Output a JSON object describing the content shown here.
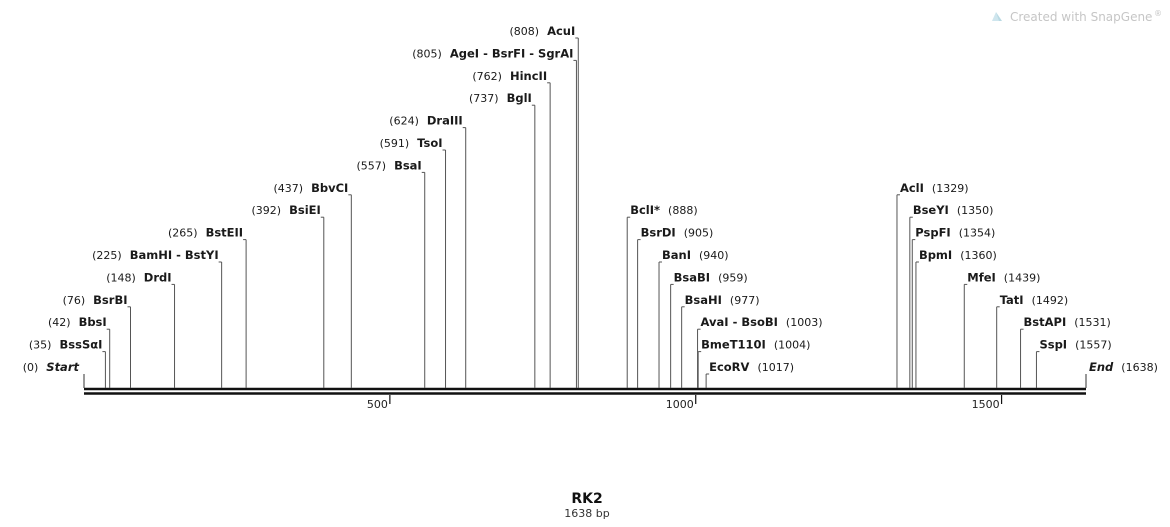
{
  "watermark": {
    "text": "Created with SnapGene",
    "mark": "®"
  },
  "sequence": {
    "name": "RK2",
    "length_label": "1638 bp",
    "length": 1638
  },
  "axis": {
    "ticks": [
      500,
      1000,
      1500
    ]
  },
  "ends": [
    {
      "name": "Start",
      "pos": 0,
      "side": "left"
    },
    {
      "name": "End",
      "pos": 1638,
      "side": "right"
    }
  ],
  "sites": [
    {
      "name": "BssSαI",
      "pos": 35,
      "side": "left",
      "level": 1
    },
    {
      "name": "BbsI",
      "pos": 42,
      "side": "left",
      "level": 2
    },
    {
      "name": "BsrBI",
      "pos": 76,
      "side": "left",
      "level": 3
    },
    {
      "name": "DrdI",
      "pos": 148,
      "side": "left",
      "level": 4
    },
    {
      "name": "BamHI - BstYI",
      "pos": 225,
      "side": "left",
      "level": 5
    },
    {
      "name": "BstEII",
      "pos": 265,
      "side": "left",
      "level": 6
    },
    {
      "name": "BsiEI",
      "pos": 392,
      "side": "left",
      "level": 7
    },
    {
      "name": "BbvCI",
      "pos": 437,
      "side": "left",
      "level": 8
    },
    {
      "name": "BsaI",
      "pos": 557,
      "side": "left",
      "level": 9
    },
    {
      "name": "TsoI",
      "pos": 591,
      "side": "left",
      "level": 10
    },
    {
      "name": "DraIII",
      "pos": 624,
      "side": "left",
      "level": 11
    },
    {
      "name": "BglI",
      "pos": 737,
      "side": "left",
      "level": 12
    },
    {
      "name": "HincII",
      "pos": 762,
      "side": "left",
      "level": 13
    },
    {
      "name": "AgeI - BsrFI - SgrAI",
      "pos": 805,
      "side": "left",
      "level": 14
    },
    {
      "name": "AcuI",
      "pos": 808,
      "side": "left",
      "level": 15
    },
    {
      "name": "BclI*",
      "pos": 888,
      "side": "right",
      "level": 7
    },
    {
      "name": "BsrDI",
      "pos": 905,
      "side": "right",
      "level": 6
    },
    {
      "name": "BanI",
      "pos": 940,
      "side": "right",
      "level": 5
    },
    {
      "name": "BsaBI",
      "pos": 959,
      "side": "right",
      "level": 4
    },
    {
      "name": "BsaHI",
      "pos": 977,
      "side": "right",
      "level": 3
    },
    {
      "name": "AvaI - BsoBI",
      "pos": 1003,
      "side": "right",
      "level": 2
    },
    {
      "name": "BmeT110I",
      "pos": 1004,
      "side": "right",
      "level": 1
    },
    {
      "name": "EcoRV",
      "pos": 1017,
      "side": "right",
      "level": 0
    },
    {
      "name": "AclI",
      "pos": 1329,
      "side": "right",
      "level": 8
    },
    {
      "name": "BseYI",
      "pos": 1350,
      "side": "right",
      "level": 7
    },
    {
      "name": "PspFI",
      "pos": 1354,
      "side": "right",
      "level": 6
    },
    {
      "name": "BpmI",
      "pos": 1360,
      "side": "right",
      "level": 5
    },
    {
      "name": "MfeI",
      "pos": 1439,
      "side": "right",
      "level": 4
    },
    {
      "name": "TatI",
      "pos": 1492,
      "side": "right",
      "level": 3
    },
    {
      "name": "BstAPI",
      "pos": 1531,
      "side": "right",
      "level": 2
    },
    {
      "name": "SspI",
      "pos": 1557,
      "side": "right",
      "level": 1
    }
  ]
}
